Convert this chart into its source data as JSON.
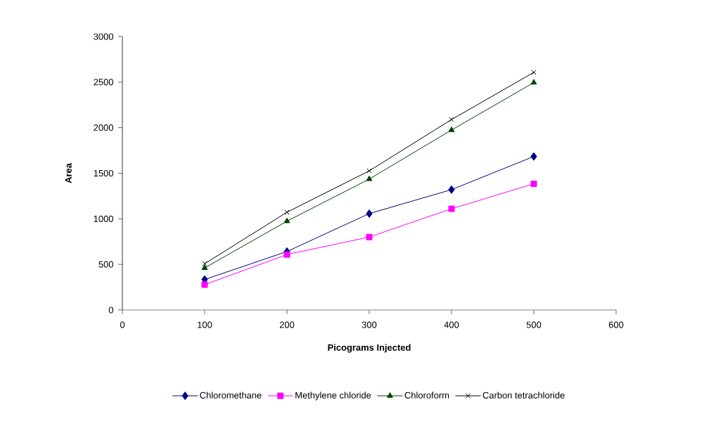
{
  "chart_data": {
    "type": "line",
    "xlabel": "Picograms Injected",
    "ylabel": "Area",
    "x": [
      100,
      200,
      300,
      400,
      500
    ],
    "series": [
      {
        "name": "Chloromethane",
        "color": "#000080",
        "marker": "diamond",
        "values": [
          334,
          641,
          1057,
          1320,
          1684
        ]
      },
      {
        "name": "Methylene chloride",
        "color": "#ff00ff",
        "marker": "square",
        "values": [
          277,
          608,
          800,
          1110,
          1384
        ]
      },
      {
        "name": "Chloroform",
        "color": "#004000",
        "marker": "triangle",
        "values": [
          461,
          974,
          1436,
          1974,
          2495
        ]
      },
      {
        "name": "Carbon tetrachloride",
        "color": "#000000",
        "marker": "cross",
        "values": [
          507,
          1072,
          1526,
          2089,
          2607
        ]
      }
    ],
    "xlim": [
      0,
      600
    ],
    "xticks": [
      0,
      100,
      200,
      300,
      400,
      500,
      600
    ],
    "ylim": [
      0,
      3000
    ],
    "yticks": [
      0,
      500,
      1000,
      1500,
      2000,
      2500,
      3000
    ],
    "legend": "bottom",
    "line_style": "solid"
  }
}
